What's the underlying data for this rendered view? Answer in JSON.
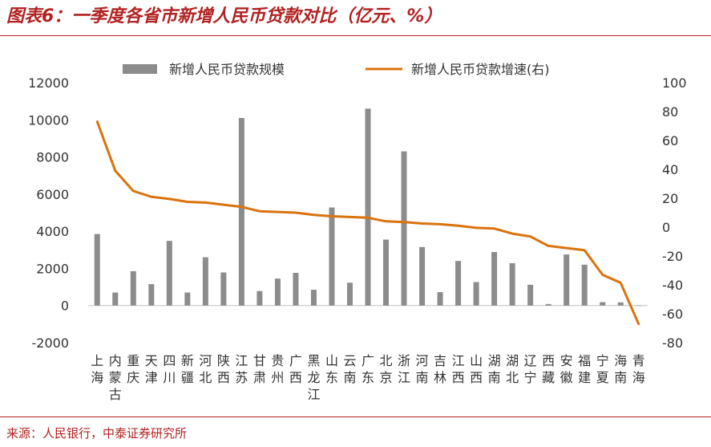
{
  "title": "图表6：一季度各省市新增人民币贷款对比（亿元、%）",
  "source": "来源：人民银行，中泰证券研究所",
  "colors": {
    "bar": "#8c8c8c",
    "line": "#d9730d",
    "accent": "#b22222"
  },
  "chart_data": {
    "type": "bar",
    "title": "图表6：一季度各省市新增人民币贷款对比（亿元、%）",
    "legend_placement": "top",
    "grid": false,
    "categories": [
      "上海",
      "内蒙古",
      "重庆",
      "天津",
      "四川",
      "新疆",
      "河北",
      "陕西",
      "江苏",
      "甘肃",
      "贵州",
      "广西",
      "黑龙江",
      "山东",
      "云南",
      "广东",
      "北京",
      "浙江",
      "河南",
      "吉林",
      "江西",
      "山西",
      "湖南",
      "湖北",
      "辽宁",
      "西藏",
      "安徽",
      "福建",
      "宁夏",
      "海南",
      "青海"
    ],
    "y_left": {
      "ticks": [
        "12000",
        "10000",
        "8000",
        "6000",
        "4000",
        "2000",
        "0",
        "-2000"
      ],
      "ylim": [
        -2000,
        12000
      ]
    },
    "y_right": {
      "ticks": [
        "100",
        "80",
        "60",
        "40",
        "20",
        "0",
        "-20",
        "-40",
        "-60",
        "-80"
      ],
      "ylim": [
        -80,
        100
      ]
    },
    "series": [
      {
        "name": "新增人民币贷款规模",
        "type": "bar",
        "axis": "left",
        "values": [
          3850,
          700,
          1850,
          1150,
          3480,
          700,
          2600,
          1780,
          10100,
          780,
          1450,
          1760,
          850,
          5280,
          1230,
          10600,
          3550,
          8300,
          3150,
          720,
          2400,
          1260,
          2880,
          2280,
          1120,
          80,
          2750,
          2200,
          180,
          170,
          -20
        ]
      },
      {
        "name": "新增人民币贷款增速(右)",
        "type": "line",
        "axis": "right",
        "values": [
          73,
          39,
          25,
          21,
          19.5,
          17.5,
          17,
          15.5,
          14,
          11,
          10.5,
          10,
          8.5,
          7.5,
          7,
          6.5,
          4,
          3.5,
          2.5,
          2,
          1,
          -0.5,
          -1,
          -4.5,
          -6.5,
          -13,
          -14.5,
          -16,
          -33,
          -38.5,
          -67
        ]
      }
    ]
  }
}
